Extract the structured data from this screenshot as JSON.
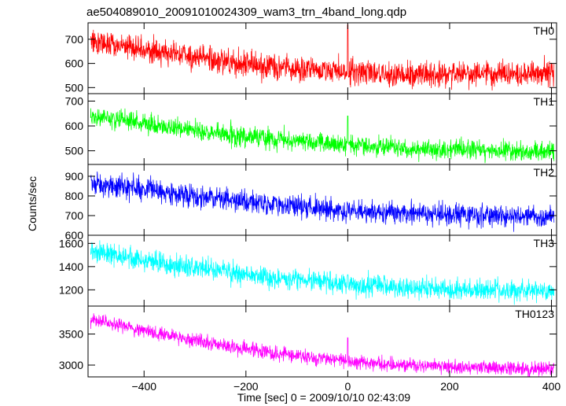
{
  "chart_data": {
    "type": "line",
    "title": "ae504089010_20091010024309_wam3_trn_4band_long.qdp",
    "xlabel": "Time [sec] 0 = 2009/10/10 02:43:09",
    "ylabel": "Counts/sec",
    "xlim": [
      -510,
      410
    ],
    "x_ticks": [
      -400,
      -200,
      0,
      200,
      400
    ],
    "x_tick_labels": [
      "−400",
      "−200",
      "0",
      "200",
      "400"
    ],
    "panels": [
      {
        "name": "TH0",
        "color": "#ff0000",
        "ylim": [
          475,
          768
        ],
        "y_ticks": [
          500,
          600,
          700
        ],
        "trend_x": [
          -505,
          -400,
          -300,
          -200,
          -100,
          0,
          100,
          200,
          300,
          400
        ],
        "trend_y": [
          690,
          658,
          628,
          598,
          580,
          565,
          558,
          555,
          556,
          555
        ],
        "noise_sd": 26,
        "spike_x": 0,
        "spike_y": 760
      },
      {
        "name": "TH1",
        "color": "#00ff00",
        "ylim": [
          445,
          730
        ],
        "y_ticks": [
          500,
          600,
          700
        ],
        "trend_x": [
          -505,
          -400,
          -300,
          -200,
          -100,
          0,
          100,
          200,
          300,
          400
        ],
        "trend_y": [
          640,
          608,
          580,
          557,
          540,
          525,
          512,
          505,
          500,
          495
        ],
        "noise_sd": 20,
        "spike_x": 0,
        "spike_y": 640
      },
      {
        "name": "TH2",
        "color": "#0000ff",
        "ylim": [
          600,
          960
        ],
        "y_ticks": [
          600,
          700,
          800,
          900
        ],
        "trend_x": [
          -505,
          -400,
          -300,
          -200,
          -100,
          0,
          100,
          200,
          300,
          400
        ],
        "trend_y": [
          870,
          835,
          800,
          770,
          745,
          725,
          712,
          705,
          700,
          695
        ],
        "noise_sd": 28,
        "spike_x": 0,
        "spike_y": 760
      },
      {
        "name": "TH3",
        "color": "#00ffff",
        "ylim": [
          1060,
          1670
        ],
        "y_ticks": [
          1200,
          1400,
          1600
        ],
        "trend_x": [
          -505,
          -400,
          -300,
          -200,
          -100,
          0,
          100,
          200,
          300,
          400
        ],
        "trend_y": [
          1540,
          1460,
          1390,
          1330,
          1280,
          1245,
          1220,
          1205,
          1195,
          1190
        ],
        "noise_sd": 45,
        "spike_x": 0,
        "spike_y": 1330
      },
      {
        "name": "TH0123",
        "color": "#ff00ff",
        "ylim": [
          2810,
          3950
        ],
        "y_ticks": [
          3000,
          3500
        ],
        "trend_x": [
          -505,
          -400,
          -300,
          -200,
          -100,
          0,
          100,
          200,
          300,
          400
        ],
        "trend_y": [
          3720,
          3560,
          3400,
          3260,
          3150,
          3060,
          3000,
          2970,
          2950,
          2930
        ],
        "noise_sd": 55,
        "spike_x": 0,
        "spike_y": 3440
      }
    ]
  }
}
